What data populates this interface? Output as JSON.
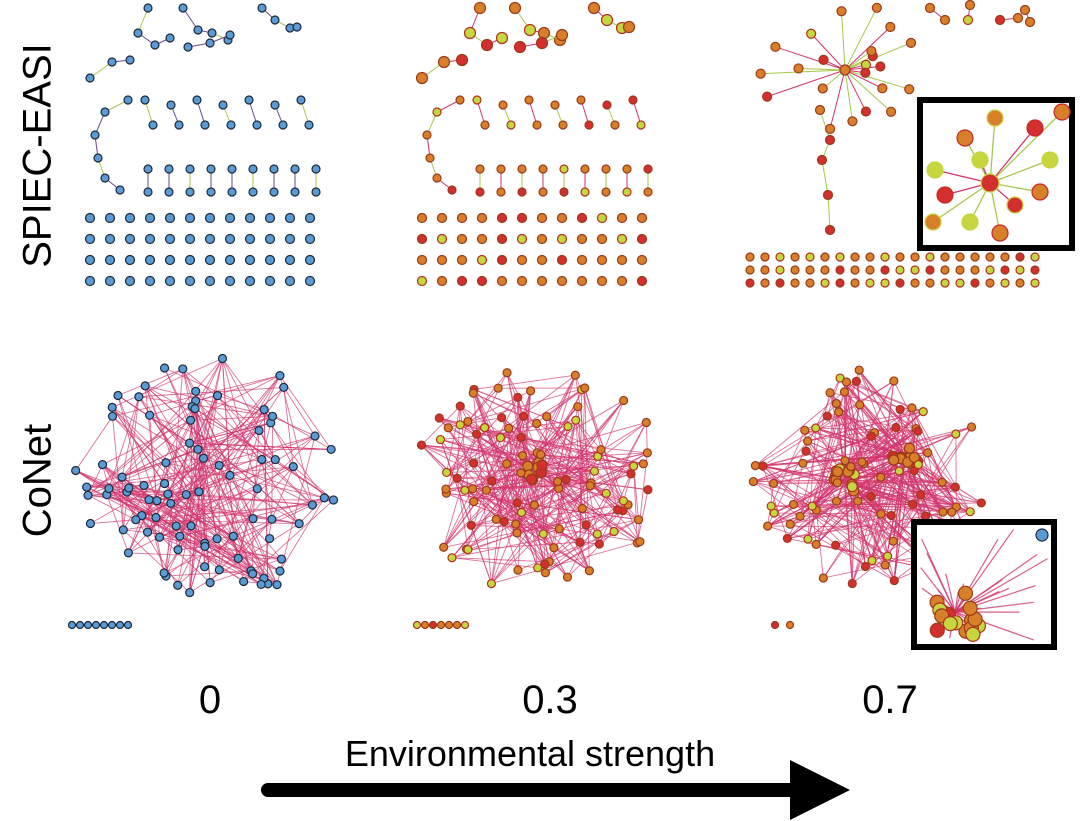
{
  "figure": {
    "row_labels": [
      "SPIEC-EASI",
      "CoNet"
    ],
    "columns": [
      "0",
      "0.3",
      "0.7"
    ],
    "axis_title": "Environmental strength"
  },
  "colors": {
    "node_blue": "#5b9bd5",
    "node_orange": "#d87f2a",
    "node_red": "#d32f2f",
    "node_yellow": "#c7d53f",
    "edge_pink": "#d1356c",
    "edge_green": "#a6c84a",
    "node_stroke": "#1c2a3a",
    "arrow": "#000000"
  }
}
